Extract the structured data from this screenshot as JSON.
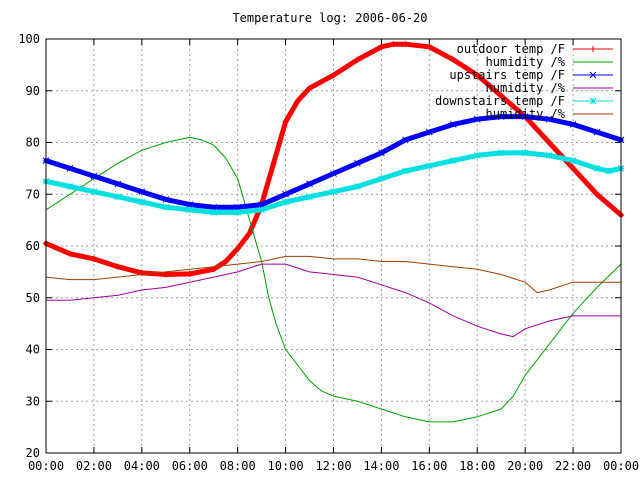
{
  "chart_data": {
    "type": "line",
    "title": "Temperature log: 2006-06-20",
    "xlabel": "",
    "ylabel": "",
    "xlim": [
      0,
      24
    ],
    "ylim": [
      20,
      100
    ],
    "grid": true,
    "legend_placement": "top-right",
    "x_tick_labels": [
      "00:00",
      "02:00",
      "04:00",
      "06:00",
      "08:00",
      "10:00",
      "12:00",
      "14:00",
      "16:00",
      "18:00",
      "20:00",
      "22:00",
      "00:00"
    ],
    "x_ticks": [
      0,
      2,
      4,
      6,
      8,
      10,
      12,
      14,
      16,
      18,
      20,
      22,
      24
    ],
    "y_ticks": [
      20,
      30,
      40,
      50,
      60,
      70,
      80,
      90,
      100
    ],
    "series": [
      {
        "name": "outdoor temp /F",
        "color": "#ff0000",
        "marker": "plus",
        "x": [
          0,
          1,
          2,
          3,
          4,
          5,
          6,
          7,
          7.5,
          8,
          8.5,
          9,
          9.5,
          10,
          10.5,
          11,
          12,
          13,
          14,
          14.5,
          15,
          16,
          17,
          18,
          19,
          20,
          21,
          22,
          23,
          24
        ],
        "y": [
          60.5,
          58.5,
          57.5,
          56,
          54.8,
          54.5,
          54.6,
          55.5,
          57,
          59.5,
          62.5,
          68,
          76,
          84,
          88,
          90.5,
          93,
          96,
          98.5,
          99,
          99,
          98.5,
          96,
          93,
          89,
          85,
          80,
          75,
          70,
          66
        ]
      },
      {
        "name": "humidity /%",
        "color": "#00a000",
        "marker": "none",
        "x": [
          0,
          1,
          2,
          3,
          4,
          5,
          6,
          6.5,
          7,
          7.5,
          8,
          8.5,
          9,
          9.3,
          9.6,
          10,
          10.5,
          11,
          11.5,
          12,
          13,
          14,
          15,
          16,
          17,
          18,
          19,
          19.5,
          20,
          21,
          22,
          23,
          24
        ],
        "y": [
          67,
          70,
          73,
          76,
          78.5,
          80,
          81,
          80.5,
          79.5,
          77,
          73,
          65,
          57,
          50,
          45,
          40,
          37,
          34,
          32,
          31,
          30,
          28.5,
          27,
          26,
          26,
          27,
          28.5,
          31,
          35,
          41,
          47,
          52,
          56.5
        ]
      },
      {
        "name": "upstairs temp /F",
        "color": "#0000ff",
        "marker": "x",
        "x": [
          0,
          1,
          2,
          3,
          4,
          5,
          6,
          7,
          8,
          9,
          10,
          11,
          12,
          13,
          14,
          15,
          16,
          17,
          18,
          19,
          20,
          21,
          22,
          23,
          24
        ],
        "y": [
          76.5,
          75,
          73.5,
          72,
          70.5,
          69,
          68,
          67.5,
          67.5,
          68,
          70,
          72,
          74,
          76,
          78,
          80.5,
          82,
          83.5,
          84.5,
          85,
          85,
          84.5,
          83.5,
          82,
          80.5
        ]
      },
      {
        "name": "humidity /%",
        "color": "#a000a0",
        "marker": "none",
        "x": [
          0,
          1,
          2,
          3,
          4,
          5,
          6,
          7,
          8,
          9,
          10,
          11,
          12,
          13,
          14,
          15,
          16,
          17,
          18,
          19,
          19.5,
          20,
          21,
          22,
          23,
          24
        ],
        "y": [
          49.5,
          49.5,
          50,
          50.5,
          51.5,
          52,
          53,
          54,
          55,
          56.5,
          56.5,
          55,
          54.5,
          54,
          52.5,
          51,
          49,
          46.5,
          44.5,
          43,
          42.5,
          44,
          45.5,
          46.5,
          46.5,
          46.5
        ]
      },
      {
        "name": "downstairs temp /F",
        "color": "#00e0e0",
        "marker": "star",
        "x": [
          0,
          1,
          2,
          3,
          4,
          5,
          6,
          7,
          8,
          9,
          10,
          11,
          12,
          13,
          14,
          15,
          16,
          17,
          18,
          19,
          20,
          21,
          22,
          23,
          23.5,
          24
        ],
        "y": [
          72.5,
          71.5,
          70.5,
          69.5,
          68.5,
          67.5,
          67,
          66.5,
          66.5,
          67,
          68.5,
          69.5,
          70.5,
          71.5,
          73,
          74.5,
          75.5,
          76.5,
          77.5,
          78,
          78,
          77.5,
          76.5,
          75,
          74.5,
          75
        ]
      },
      {
        "name": "humidity /%",
        "color": "#a04000",
        "marker": "none",
        "x": [
          0,
          1,
          2,
          3,
          4,
          5,
          6,
          7,
          8,
          9,
          10,
          11,
          12,
          13,
          14,
          15,
          16,
          17,
          18,
          19,
          20,
          20.5,
          21,
          22,
          23,
          24
        ],
        "y": [
          54,
          53.5,
          53.5,
          54,
          54.5,
          55,
          55.5,
          56,
          56.5,
          57,
          58,
          58,
          57.5,
          57.5,
          57,
          57,
          56.5,
          56,
          55.5,
          54.5,
          53,
          51,
          51.5,
          53,
          53,
          53
        ]
      }
    ]
  }
}
